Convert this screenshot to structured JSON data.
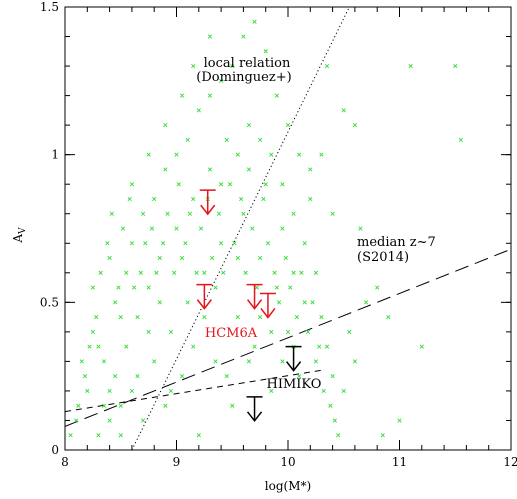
{
  "chart_data": {
    "type": "scatter",
    "xlabel": "log(M*)",
    "ylabel": "A_V",
    "ylabel_main": "A",
    "ylabel_sub": "V",
    "xlim": [
      8,
      12
    ],
    "ylim": [
      0,
      1.5
    ],
    "xticks": [
      8,
      9,
      10,
      11,
      12
    ],
    "xtick_labels": [
      "8",
      "9",
      "10",
      "11",
      "12"
    ],
    "yticks": [
      0,
      0.5,
      1,
      1.5
    ],
    "ytick_labels": [
      "0",
      "0.5",
      "1",
      "1.5"
    ],
    "grid": false,
    "colors": {
      "points": "#33dd33",
      "hcm6a": "#e8141c",
      "himiko": "#000000",
      "frame": "#000000"
    },
    "series": [
      {
        "marker": "x",
        "points": [
          [
            8.3,
            0.05
          ],
          [
            8.35,
            0.15
          ],
          [
            8.4,
            0.1
          ],
          [
            8.45,
            0.25
          ],
          [
            8.5,
            0.05
          ],
          [
            8.55,
            0.35
          ],
          [
            8.6,
            0.2
          ],
          [
            8.65,
            0.45
          ],
          [
            8.7,
            0.1
          ],
          [
            8.75,
            0.55
          ],
          [
            8.8,
            0.3
          ],
          [
            8.85,
            0.65
          ],
          [
            8.9,
            0.15
          ],
          [
            8.95,
            0.4
          ],
          [
            9.0,
            0.75
          ],
          [
            9.05,
            0.25
          ],
          [
            9.1,
            0.5
          ],
          [
            9.15,
            0.85
          ],
          [
            9.2,
            0.05
          ],
          [
            9.25,
            0.6
          ],
          [
            9.3,
            0.95
          ],
          [
            9.35,
            0.3
          ],
          [
            9.4,
            0.7
          ],
          [
            9.45,
            1.05
          ],
          [
            9.5,
            0.15
          ],
          [
            9.55,
            0.45
          ],
          [
            9.6,
            0.8
          ],
          [
            9.65,
            1.1
          ],
          [
            9.7,
            0.35
          ],
          [
            9.75,
            0.65
          ],
          [
            9.8,
            0.9
          ],
          [
            9.85,
            0.2
          ],
          [
            9.9,
            0.55
          ],
          [
            9.95,
            0.75
          ],
          [
            10.0,
            0.4
          ],
          [
            10.05,
            0.6
          ],
          [
            10.1,
            0.25
          ],
          [
            10.15,
            0.5
          ],
          [
            10.2,
            0.85
          ],
          [
            10.25,
            0.3
          ],
          [
            8.2,
            0.2
          ],
          [
            8.25,
            0.4
          ],
          [
            8.35,
            0.3
          ],
          [
            8.45,
            0.5
          ],
          [
            8.55,
            0.6
          ],
          [
            8.65,
            0.25
          ],
          [
            8.75,
            0.4
          ],
          [
            8.85,
            0.5
          ],
          [
            8.95,
            0.2
          ],
          [
            9.05,
            0.65
          ],
          [
            9.15,
            0.35
          ],
          [
            9.25,
            0.45
          ],
          [
            9.35,
            0.55
          ],
          [
            9.45,
            0.25
          ],
          [
            9.55,
            0.65
          ],
          [
            9.65,
            0.3
          ],
          [
            9.75,
            0.45
          ],
          [
            9.85,
            0.4
          ],
          [
            9.95,
            0.3
          ],
          [
            10.05,
            0.35
          ],
          [
            8.1,
            0.1
          ],
          [
            8.15,
            0.3
          ],
          [
            8.5,
            0.45
          ],
          [
            8.6,
            0.7
          ],
          [
            8.7,
            0.8
          ],
          [
            8.8,
            0.85
          ],
          [
            8.9,
            0.95
          ],
          [
            9.0,
            1.0
          ],
          [
            9.1,
            1.05
          ],
          [
            9.2,
            1.15
          ],
          [
            9.3,
            1.2
          ],
          [
            9.4,
            1.25
          ],
          [
            9.5,
            1.3
          ],
          [
            9.6,
            1.4
          ],
          [
            9.7,
            1.45
          ],
          [
            9.8,
            1.35
          ],
          [
            9.9,
            1.2
          ],
          [
            10.0,
            1.1
          ],
          [
            10.1,
            1.0
          ],
          [
            10.2,
            0.95
          ],
          [
            8.25,
            0.55
          ],
          [
            8.4,
            0.65
          ],
          [
            8.6,
            0.9
          ],
          [
            8.75,
            1.0
          ],
          [
            8.9,
            1.1
          ],
          [
            9.05,
            1.2
          ],
          [
            9.15,
            1.3
          ],
          [
            9.3,
            1.4
          ],
          [
            9.4,
            0.9
          ],
          [
            9.55,
            1.0
          ],
          [
            9.65,
            0.95
          ],
          [
            9.75,
            1.05
          ],
          [
            9.85,
            1.0
          ],
          [
            9.95,
            0.9
          ],
          [
            10.05,
            0.8
          ],
          [
            10.15,
            0.7
          ],
          [
            10.25,
            0.6
          ],
          [
            10.3,
            0.45
          ],
          [
            10.35,
            0.35
          ],
          [
            10.4,
            0.25
          ],
          [
            8.05,
            0.05
          ],
          [
            8.12,
            0.15
          ],
          [
            8.18,
            0.25
          ],
          [
            8.22,
            0.35
          ],
          [
            8.28,
            0.45
          ],
          [
            8.32,
            0.6
          ],
          [
            8.38,
            0.7
          ],
          [
            8.42,
            0.8
          ],
          [
            8.48,
            0.55
          ],
          [
            8.52,
            0.75
          ],
          [
            8.58,
            0.85
          ],
          [
            8.62,
            0.55
          ],
          [
            8.68,
            0.6
          ],
          [
            8.72,
            0.7
          ],
          [
            8.78,
            0.75
          ],
          [
            8.82,
            0.6
          ],
          [
            8.88,
            0.7
          ],
          [
            8.92,
            0.8
          ],
          [
            8.98,
            0.6
          ],
          [
            9.02,
            0.9
          ],
          [
            9.08,
            0.7
          ],
          [
            9.12,
            0.8
          ],
          [
            9.18,
            0.6
          ],
          [
            9.22,
            0.75
          ],
          [
            9.28,
            0.85
          ],
          [
            9.32,
            0.65
          ],
          [
            9.38,
            0.8
          ],
          [
            9.42,
            0.6
          ],
          [
            9.48,
            0.9
          ],
          [
            9.52,
            0.7
          ],
          [
            9.58,
            0.85
          ],
          [
            9.62,
            0.6
          ],
          [
            9.68,
            0.75
          ],
          [
            9.72,
            0.55
          ],
          [
            9.78,
            0.85
          ],
          [
            9.82,
            0.7
          ],
          [
            9.88,
            0.6
          ],
          [
            9.92,
            0.5
          ],
          [
            9.98,
            0.65
          ],
          [
            10.02,
            0.55
          ],
          [
            10.08,
            0.45
          ],
          [
            10.12,
            0.6
          ],
          [
            10.18,
            0.4
          ],
          [
            10.22,
            0.5
          ],
          [
            10.28,
            0.35
          ],
          [
            10.32,
            0.2
          ],
          [
            10.38,
            0.15
          ],
          [
            10.42,
            0.1
          ],
          [
            10.45,
            0.05
          ],
          [
            10.5,
            0.2
          ],
          [
            10.55,
            0.4
          ],
          [
            10.6,
            0.3
          ],
          [
            10.7,
            0.5
          ],
          [
            10.8,
            0.55
          ],
          [
            10.9,
            0.45
          ],
          [
            11.0,
            0.1
          ],
          [
            10.6,
            1.1
          ],
          [
            10.5,
            1.15
          ],
          [
            10.3,
            1.0
          ],
          [
            10.4,
            0.8
          ],
          [
            10.65,
            0.75
          ],
          [
            10.35,
            1.3
          ],
          [
            11.1,
            1.3
          ],
          [
            11.5,
            1.3
          ],
          [
            11.55,
            1.05
          ],
          [
            11.2,
            0.35
          ],
          [
            10.85,
            0.05
          ],
          [
            8.3,
            0.35
          ],
          [
            8.4,
            0.2
          ],
          [
            8.5,
            0.15
          ]
        ]
      }
    ],
    "lines": [
      {
        "name": "local relation",
        "style": "dotted",
        "x": [
          8.6,
          10.55
        ],
        "y": [
          0.0,
          1.5
        ]
      },
      {
        "name": "median z~7",
        "style": "long-dashed",
        "x": [
          8.0,
          12.0
        ],
        "y": [
          0.08,
          0.68
        ]
      },
      {
        "name": "HIMIKO relation",
        "style": "short-dashed",
        "x": [
          8.0,
          10.3
        ],
        "y": [
          0.13,
          0.27
        ]
      }
    ],
    "hcm6a_limits": [
      {
        "x": 9.28,
        "y": 0.88
      },
      {
        "x": 9.25,
        "y": 0.56
      },
      {
        "x": 9.7,
        "y": 0.56
      },
      {
        "x": 9.82,
        "y": 0.53
      }
    ],
    "himiko_limits": [
      {
        "x": 10.05,
        "y": 0.35
      },
      {
        "x": 9.7,
        "y": 0.18
      }
    ],
    "annotations": {
      "local_relation_line1": "local relation",
      "local_relation_line2": "(Dominguez+)",
      "median_line1": "median z~7",
      "median_line2": "(S2014)",
      "hcm6a": "HCM6A",
      "himiko": "HIMIKO"
    }
  }
}
